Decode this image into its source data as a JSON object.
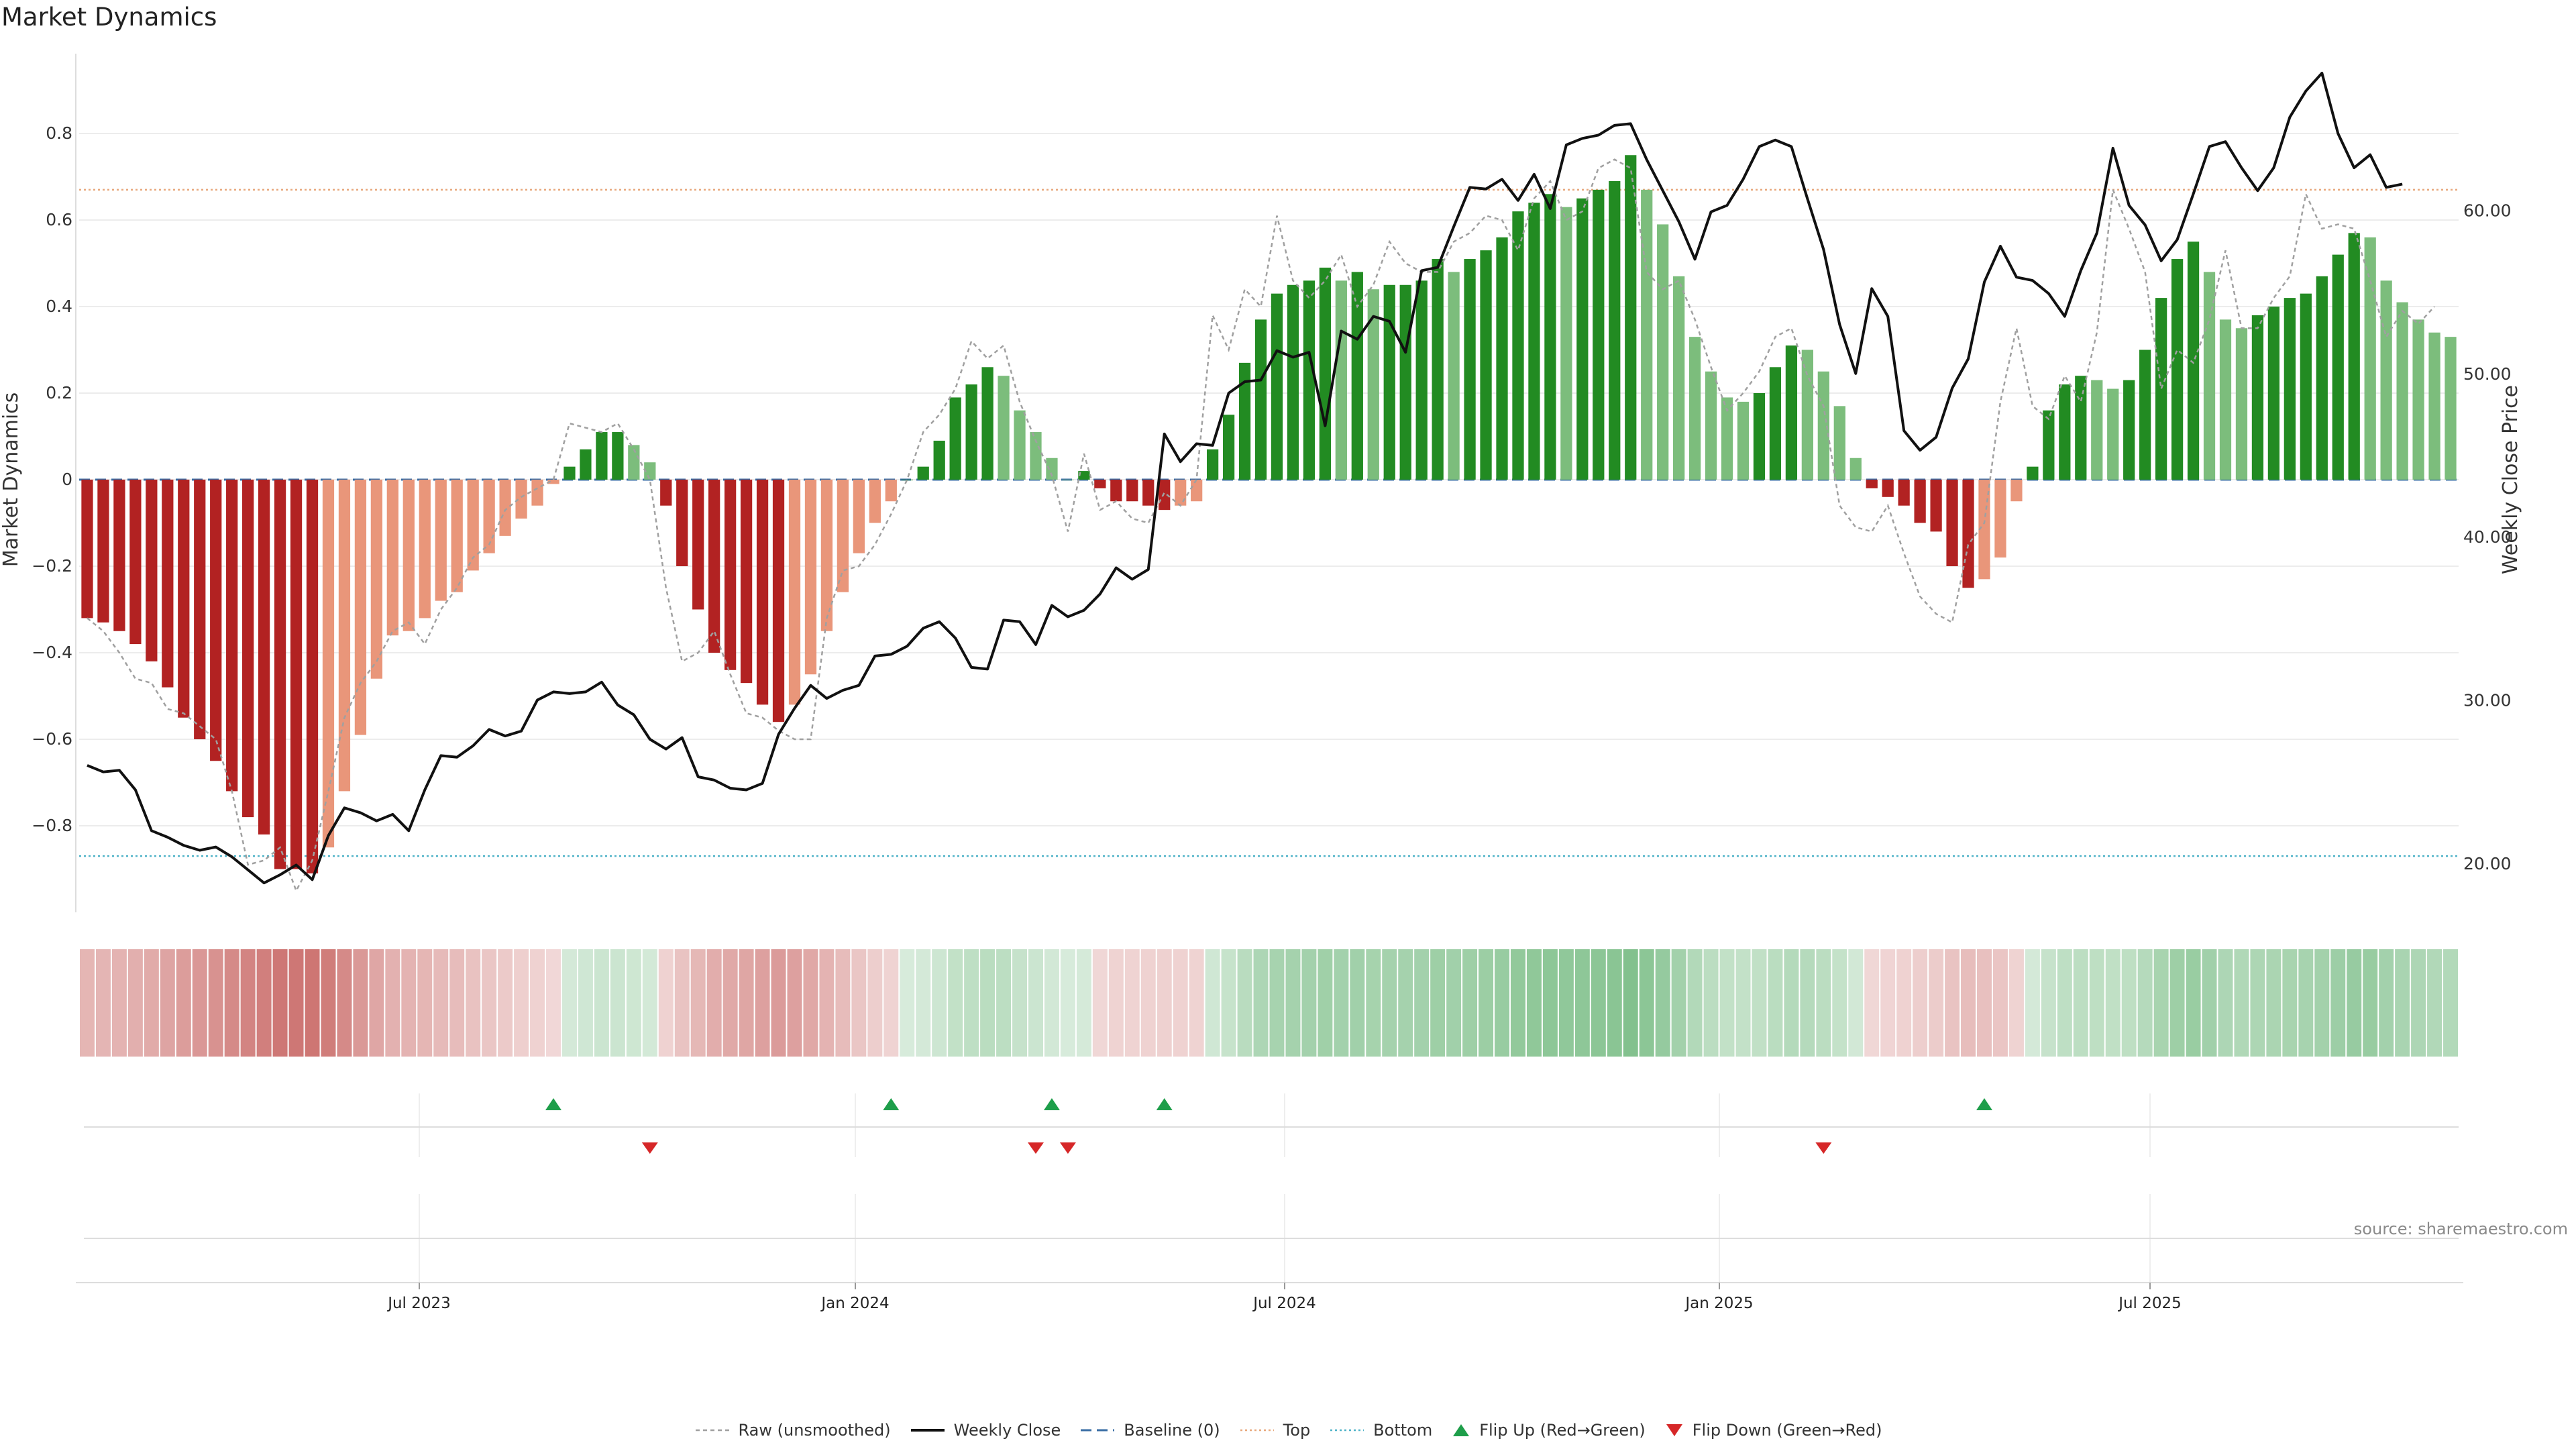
{
  "chart_data": {
    "title": "Market Dynamics",
    "type": "bar",
    "ylabel_left": "Market Dynamics",
    "ylabel_right": "Weekly Close Price",
    "ylim_left": [
      -1.0,
      1.0
    ],
    "ylim_right": [
      17.0,
      70.0
    ],
    "yticks_left": [
      "0.8",
      "0.6",
      "0.4",
      "0.2",
      "0",
      "−0.2",
      "−0.4",
      "−0.6",
      "−0.8"
    ],
    "yticks_right": [
      "60.00",
      "50.00",
      "40.00",
      "30.00",
      "20.00"
    ],
    "x_ticks": [
      "Jul 2023",
      "Jan 2024",
      "Jul 2024",
      "Jan 2025",
      "Jul 2025"
    ],
    "top_level": 0.67,
    "bottom_level": -0.87,
    "baseline": 0,
    "bar_values": [
      -0.32,
      -0.33,
      -0.35,
      -0.38,
      -0.42,
      -0.48,
      -0.55,
      -0.6,
      -0.65,
      -0.72,
      -0.78,
      -0.82,
      -0.9,
      -0.9,
      -0.91,
      -0.85,
      -0.72,
      -0.59,
      -0.46,
      -0.36,
      -0.35,
      -0.32,
      -0.28,
      -0.26,
      -0.21,
      -0.17,
      -0.13,
      -0.09,
      -0.06,
      -0.01,
      0.03,
      0.07,
      0.11,
      0.11,
      0.08,
      0.04,
      -0.06,
      -0.2,
      -0.3,
      -0.4,
      -0.44,
      -0.47,
      -0.52,
      -0.56,
      -0.52,
      -0.45,
      -0.35,
      -0.26,
      -0.17,
      -0.1,
      -0.05,
      0.0,
      0.03,
      0.09,
      0.19,
      0.22,
      0.26,
      0.24,
      0.16,
      0.11,
      0.05,
      0.0,
      0.02,
      -0.02,
      -0.05,
      -0.05,
      -0.06,
      -0.07,
      -0.06,
      -0.05,
      0.07,
      0.15,
      0.27,
      0.37,
      0.43,
      0.45,
      0.46,
      0.49,
      0.46,
      0.48,
      0.44,
      0.45,
      0.45,
      0.46,
      0.51,
      0.48,
      0.51,
      0.53,
      0.56,
      0.62,
      0.64,
      0.66,
      0.63,
      0.65,
      0.67,
      0.69,
      0.75,
      0.67,
      0.59,
      0.47,
      0.33,
      0.25,
      0.19,
      0.18,
      0.2,
      0.26,
      0.31,
      0.3,
      0.25,
      0.17,
      0.05,
      -0.02,
      -0.04,
      -0.06,
      -0.1,
      -0.12,
      -0.2,
      -0.25,
      -0.23,
      -0.18,
      -0.05,
      0.03,
      0.16,
      0.22,
      0.24,
      0.23,
      0.21,
      0.23,
      0.3,
      0.42,
      0.51,
      0.55,
      0.48,
      0.37,
      0.35,
      0.38,
      0.4,
      0.42,
      0.43,
      0.47,
      0.52,
      0.57,
      0.56,
      0.46,
      0.41,
      0.37,
      0.34,
      0.33
    ],
    "series": [
      {
        "name": "Raw (unsmoothed)",
        "values": [
          -0.32,
          -0.35,
          -0.4,
          -0.46,
          -0.47,
          -0.53,
          -0.54,
          -0.57,
          -0.6,
          -0.72,
          -0.89,
          -0.88,
          -0.85,
          -0.95,
          -0.88,
          -0.72,
          -0.55,
          -0.47,
          -0.42,
          -0.35,
          -0.33,
          -0.38,
          -0.3,
          -0.25,
          -0.18,
          -0.15,
          -0.07,
          -0.04,
          -0.02,
          0.0,
          0.13,
          0.12,
          0.11,
          0.13,
          0.07,
          0.0,
          -0.25,
          -0.42,
          -0.4,
          -0.35,
          -0.45,
          -0.54,
          -0.55,
          -0.58,
          -0.6,
          -0.6,
          -0.32,
          -0.21,
          -0.2,
          -0.15,
          -0.08,
          0.0,
          0.11,
          0.15,
          0.21,
          0.32,
          0.28,
          0.31,
          0.18,
          0.09,
          0.01,
          -0.12,
          0.06,
          -0.07,
          -0.05,
          -0.09,
          -0.1,
          -0.03,
          -0.06,
          0.0,
          0.38,
          0.3,
          0.44,
          0.4,
          0.61,
          0.46,
          0.42,
          0.46,
          0.52,
          0.4,
          0.45,
          0.55,
          0.5,
          0.48,
          0.48,
          0.55,
          0.57,
          0.61,
          0.6,
          0.53,
          0.65,
          0.69,
          0.6,
          0.62,
          0.72,
          0.74,
          0.72,
          0.48,
          0.44,
          0.46,
          0.37,
          0.26,
          0.16,
          0.2,
          0.25,
          0.33,
          0.35,
          0.24,
          0.17,
          -0.06,
          -0.11,
          -0.12,
          -0.06,
          -0.17,
          -0.27,
          -0.31,
          -0.33,
          -0.15,
          -0.1,
          0.18,
          0.35,
          0.17,
          0.14,
          0.24,
          0.18,
          0.34,
          0.67,
          0.58,
          0.48,
          0.21,
          0.3,
          0.27,
          0.37,
          0.53,
          0.35,
          0.35,
          0.42,
          0.47,
          0.66,
          0.58,
          0.59,
          0.58,
          0.46,
          0.33,
          0.39,
          0.36,
          0.4
        ]
      },
      {
        "name": "Weekly Close",
        "values": [
          26.0,
          25.6,
          25.7,
          24.5,
          22.0,
          21.6,
          21.1,
          20.8,
          21.0,
          20.4,
          19.6,
          18.8,
          19.3,
          19.9,
          19.0,
          21.7,
          23.4,
          23.1,
          22.6,
          23.0,
          22.0,
          24.5,
          26.6,
          26.5,
          27.2,
          28.2,
          27.8,
          28.1,
          30.0,
          30.5,
          30.4,
          30.5,
          31.1,
          29.7,
          29.1,
          27.6,
          27.0,
          27.7,
          25.3,
          25.1,
          24.6,
          24.5,
          24.9,
          27.9,
          29.5,
          30.9,
          30.1,
          30.6,
          30.9,
          32.7,
          32.8,
          33.3,
          34.4,
          34.8,
          33.8,
          32.0,
          31.9,
          34.9,
          34.8,
          33.4,
          35.8,
          35.1,
          35.5,
          36.5,
          38.1,
          37.4,
          38.0,
          46.3,
          44.6,
          45.7,
          45.6,
          48.8,
          49.5,
          49.6,
          51.4,
          51.0,
          51.3,
          46.8,
          52.6,
          52.1,
          53.5,
          53.2,
          51.3,
          56.3,
          56.5,
          59.0,
          61.4,
          61.3,
          61.9,
          60.6,
          62.2,
          60.1,
          64.0,
          64.4,
          64.6,
          65.2,
          65.3,
          63.1,
          61.2,
          59.3,
          57.0,
          59.9,
          60.3,
          61.9,
          63.9,
          64.3,
          63.9,
          60.7,
          57.6,
          53.0,
          50.0,
          55.2,
          53.5,
          46.5,
          45.3,
          46.1,
          49.1,
          50.9,
          55.6,
          57.8,
          55.9,
          55.7,
          54.9,
          53.5,
          56.3,
          58.6,
          63.8,
          60.3,
          59.1,
          56.9,
          58.2,
          61.0,
          63.9,
          64.2,
          62.6,
          61.2,
          62.6,
          65.7,
          67.3,
          68.4,
          64.7,
          62.6,
          63.4,
          61.4,
          61.6
        ]
      },
      {
        "name": "Baseline (0)"
      },
      {
        "name": "Top"
      },
      {
        "name": "Bottom"
      },
      {
        "name": "Flip Up (Red→Green)",
        "bars": [
          29,
          50,
          60,
          67,
          118
        ]
      },
      {
        "name": "Flip Down (Green→Red)",
        "bars": [
          35,
          59,
          61,
          108
        ]
      }
    ],
    "grid": true,
    "legend_position": "bottom-center"
  },
  "source": "source: sharemaestro.com",
  "colors": {
    "strong_red": "#b22222",
    "weak_red": "#e9967a",
    "strong_green": "#228b22",
    "weak_green": "#7cbd7c",
    "close_line": "#111111",
    "raw_line": "#a0a0a0",
    "baseline": "#3a6ea5",
    "top": "#e8a87c",
    "bottom": "#4fb3c8",
    "flip_up": "#1e9e4a",
    "flip_down": "#d62728"
  }
}
